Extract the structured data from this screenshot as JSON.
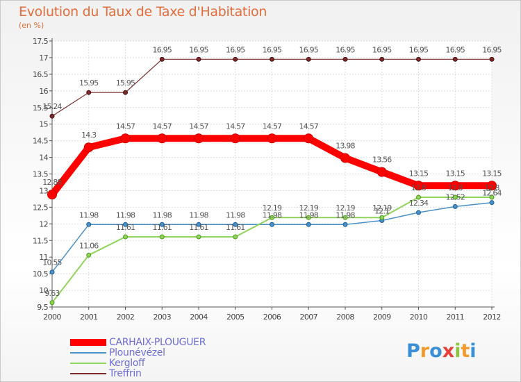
{
  "chart_data": {
    "type": "line",
    "title": "Evolution du Taux de Taxe d'Habitation",
    "subtitle": "(en %)",
    "x": [
      2000,
      2001,
      2002,
      2003,
      2004,
      2005,
      2006,
      2007,
      2008,
      2009,
      2010,
      2011,
      2012
    ],
    "ylim": [
      9.5,
      17.5
    ],
    "yticks": [
      "9.5",
      "10",
      "10.5",
      "11",
      "11.5",
      "12",
      "12.5",
      "13",
      "13.5",
      "14",
      "14.5",
      "15",
      "15.5",
      "16",
      "16.5",
      "17",
      "17.5"
    ],
    "grid": true,
    "legend_position": "bottom-left",
    "series": [
      {
        "name": "CARHAIX-PLOUGUER",
        "color": "#ff0000",
        "values": [
          12.88,
          14.3,
          14.57,
          14.57,
          14.57,
          14.57,
          14.57,
          14.57,
          13.98,
          13.56,
          13.15,
          13.15,
          13.15
        ],
        "labels": [
          "12.88",
          "14.3",
          "14.57",
          "14.57",
          "14.57",
          "14.57",
          "14.57",
          "14.57",
          "13.98",
          "13.56",
          "13.15",
          "13.15",
          "13.15"
        ]
      },
      {
        "name": "Plounévézel",
        "color": "#4a90c8",
        "values": [
          10.55,
          11.98,
          11.98,
          11.98,
          11.98,
          11.98,
          11.98,
          11.98,
          11.98,
          12.1,
          12.34,
          12.52,
          12.64
        ],
        "labels": [
          "10.55",
          "11.98",
          "11.98",
          "11.98",
          "11.98",
          "11.98",
          "11.98",
          "11.98",
          "11.98",
          "12.1",
          "12.34",
          "12.52",
          "12.64"
        ]
      },
      {
        "name": "Kergloff",
        "color": "#8fd45a",
        "values": [
          9.63,
          11.06,
          11.61,
          11.61,
          11.61,
          11.61,
          12.19,
          12.19,
          12.19,
          12.19,
          12.8,
          12.8,
          12.8
        ],
        "labels": [
          "9.63",
          "11.06",
          "11.61",
          "11.61",
          "11.61",
          "11.61",
          "12.19",
          "12.19",
          "12.19",
          "12.19",
          "12.8",
          "12.8",
          "12.8"
        ]
      },
      {
        "name": "Treffrin",
        "color": "#7a2a2a",
        "values": [
          15.24,
          15.95,
          15.95,
          16.95,
          16.95,
          16.95,
          16.95,
          16.95,
          16.95,
          16.95,
          16.95,
          16.95,
          16.95
        ],
        "labels": [
          "15.24",
          "15.95",
          "15.95",
          "16.95",
          "16.95",
          "16.95",
          "16.95",
          "16.95",
          "16.95",
          "16.95",
          "16.95",
          "16.95",
          "16.95"
        ]
      }
    ]
  },
  "logo": {
    "text": "Proxiti"
  }
}
